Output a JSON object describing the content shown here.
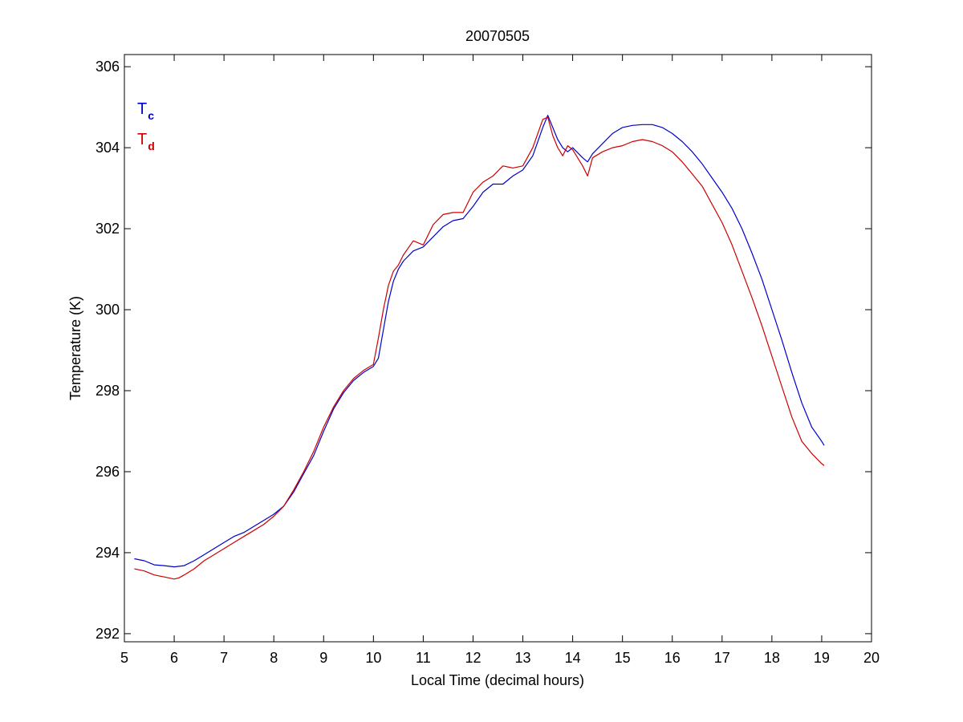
{
  "chart_data": {
    "type": "line",
    "title": "20070505",
    "xlabel": "Local Time (decimal hours)",
    "ylabel": "Temperature (K)",
    "xlim": [
      5,
      20
    ],
    "ylim": [
      291.8,
      306.3
    ],
    "xticks": [
      5,
      6,
      7,
      8,
      9,
      10,
      11,
      12,
      13,
      14,
      15,
      16,
      17,
      18,
      19,
      20
    ],
    "yticks": [
      292,
      294,
      296,
      298,
      300,
      302,
      304,
      306
    ],
    "grid": false,
    "legend_position": "top-left",
    "series": [
      {
        "name": "T",
        "subscript": "c",
        "color": "#0000cc",
        "points": [
          [
            5.2,
            293.85
          ],
          [
            5.4,
            293.8
          ],
          [
            5.6,
            293.7
          ],
          [
            5.8,
            293.68
          ],
          [
            6.0,
            293.65
          ],
          [
            6.2,
            293.68
          ],
          [
            6.4,
            293.8
          ],
          [
            6.6,
            293.95
          ],
          [
            6.8,
            294.1
          ],
          [
            7.0,
            294.25
          ],
          [
            7.2,
            294.4
          ],
          [
            7.4,
            294.5
          ],
          [
            7.6,
            294.65
          ],
          [
            7.8,
            294.8
          ],
          [
            8.0,
            294.95
          ],
          [
            8.2,
            295.15
          ],
          [
            8.4,
            295.5
          ],
          [
            8.6,
            295.95
          ],
          [
            8.8,
            296.4
          ],
          [
            9.0,
            297.0
          ],
          [
            9.2,
            297.55
          ],
          [
            9.4,
            297.95
          ],
          [
            9.6,
            298.25
          ],
          [
            9.8,
            298.45
          ],
          [
            10.0,
            298.6
          ],
          [
            10.1,
            298.8
          ],
          [
            10.2,
            299.5
          ],
          [
            10.3,
            300.2
          ],
          [
            10.4,
            300.7
          ],
          [
            10.5,
            301.0
          ],
          [
            10.6,
            301.2
          ],
          [
            10.8,
            301.45
          ],
          [
            11.0,
            301.55
          ],
          [
            11.2,
            301.8
          ],
          [
            11.4,
            302.05
          ],
          [
            11.6,
            302.2
          ],
          [
            11.8,
            302.25
          ],
          [
            12.0,
            302.55
          ],
          [
            12.2,
            302.9
          ],
          [
            12.4,
            303.1
          ],
          [
            12.6,
            303.1
          ],
          [
            12.8,
            303.3
          ],
          [
            13.0,
            303.45
          ],
          [
            13.2,
            303.8
          ],
          [
            13.4,
            304.5
          ],
          [
            13.5,
            304.8
          ],
          [
            13.6,
            304.5
          ],
          [
            13.7,
            304.2
          ],
          [
            13.8,
            304.0
          ],
          [
            13.9,
            303.9
          ],
          [
            14.0,
            304.0
          ],
          [
            14.2,
            303.75
          ],
          [
            14.3,
            303.65
          ],
          [
            14.4,
            303.85
          ],
          [
            14.6,
            304.1
          ],
          [
            14.8,
            304.35
          ],
          [
            15.0,
            304.5
          ],
          [
            15.2,
            304.55
          ],
          [
            15.4,
            304.57
          ],
          [
            15.6,
            304.57
          ],
          [
            15.8,
            304.5
          ],
          [
            16.0,
            304.35
          ],
          [
            16.2,
            304.15
          ],
          [
            16.4,
            303.9
          ],
          [
            16.6,
            303.6
          ],
          [
            16.8,
            303.25
          ],
          [
            17.0,
            302.9
          ],
          [
            17.2,
            302.5
          ],
          [
            17.4,
            302.0
          ],
          [
            17.6,
            301.4
          ],
          [
            17.8,
            300.75
          ],
          [
            18.0,
            300.0
          ],
          [
            18.2,
            299.25
          ],
          [
            18.4,
            298.45
          ],
          [
            18.6,
            297.7
          ],
          [
            18.8,
            297.1
          ],
          [
            19.0,
            296.75
          ],
          [
            19.05,
            296.65
          ]
        ]
      },
      {
        "name": "T",
        "subscript": "d",
        "color": "#cc0000",
        "points": [
          [
            5.2,
            293.6
          ],
          [
            5.4,
            293.55
          ],
          [
            5.6,
            293.45
          ],
          [
            5.8,
            293.4
          ],
          [
            6.0,
            293.35
          ],
          [
            6.1,
            293.38
          ],
          [
            6.2,
            293.45
          ],
          [
            6.4,
            293.6
          ],
          [
            6.6,
            293.8
          ],
          [
            6.8,
            293.95
          ],
          [
            7.0,
            294.1
          ],
          [
            7.2,
            294.25
          ],
          [
            7.4,
            294.4
          ],
          [
            7.6,
            294.55
          ],
          [
            7.8,
            294.7
          ],
          [
            8.0,
            294.9
          ],
          [
            8.2,
            295.15
          ],
          [
            8.4,
            295.55
          ],
          [
            8.6,
            296.0
          ],
          [
            8.8,
            296.5
          ],
          [
            9.0,
            297.1
          ],
          [
            9.2,
            297.6
          ],
          [
            9.4,
            298.0
          ],
          [
            9.6,
            298.3
          ],
          [
            9.8,
            298.5
          ],
          [
            10.0,
            298.65
          ],
          [
            10.1,
            299.3
          ],
          [
            10.2,
            300.0
          ],
          [
            10.3,
            300.6
          ],
          [
            10.4,
            300.95
          ],
          [
            10.5,
            301.1
          ],
          [
            10.6,
            301.35
          ],
          [
            10.8,
            301.7
          ],
          [
            11.0,
            301.6
          ],
          [
            11.2,
            302.1
          ],
          [
            11.4,
            302.35
          ],
          [
            11.6,
            302.4
          ],
          [
            11.8,
            302.4
          ],
          [
            12.0,
            302.9
          ],
          [
            12.2,
            303.15
          ],
          [
            12.4,
            303.3
          ],
          [
            12.6,
            303.55
          ],
          [
            12.8,
            303.5
          ],
          [
            13.0,
            303.55
          ],
          [
            13.2,
            304.0
          ],
          [
            13.4,
            304.7
          ],
          [
            13.5,
            304.75
          ],
          [
            13.6,
            304.3
          ],
          [
            13.7,
            304.0
          ],
          [
            13.8,
            303.8
          ],
          [
            13.9,
            304.05
          ],
          [
            14.0,
            303.95
          ],
          [
            14.2,
            303.55
          ],
          [
            14.3,
            303.3
          ],
          [
            14.4,
            303.75
          ],
          [
            14.6,
            303.9
          ],
          [
            14.8,
            304.0
          ],
          [
            15.0,
            304.05
          ],
          [
            15.2,
            304.15
          ],
          [
            15.4,
            304.2
          ],
          [
            15.6,
            304.15
          ],
          [
            15.8,
            304.05
          ],
          [
            16.0,
            303.9
          ],
          [
            16.2,
            303.65
          ],
          [
            16.4,
            303.35
          ],
          [
            16.6,
            303.05
          ],
          [
            16.8,
            302.6
          ],
          [
            17.0,
            302.15
          ],
          [
            17.2,
            301.6
          ],
          [
            17.4,
            300.95
          ],
          [
            17.6,
            300.3
          ],
          [
            17.8,
            299.6
          ],
          [
            18.0,
            298.85
          ],
          [
            18.2,
            298.1
          ],
          [
            18.4,
            297.35
          ],
          [
            18.6,
            296.75
          ],
          [
            18.8,
            296.45
          ],
          [
            19.0,
            296.2
          ],
          [
            19.05,
            296.15
          ]
        ]
      }
    ]
  }
}
